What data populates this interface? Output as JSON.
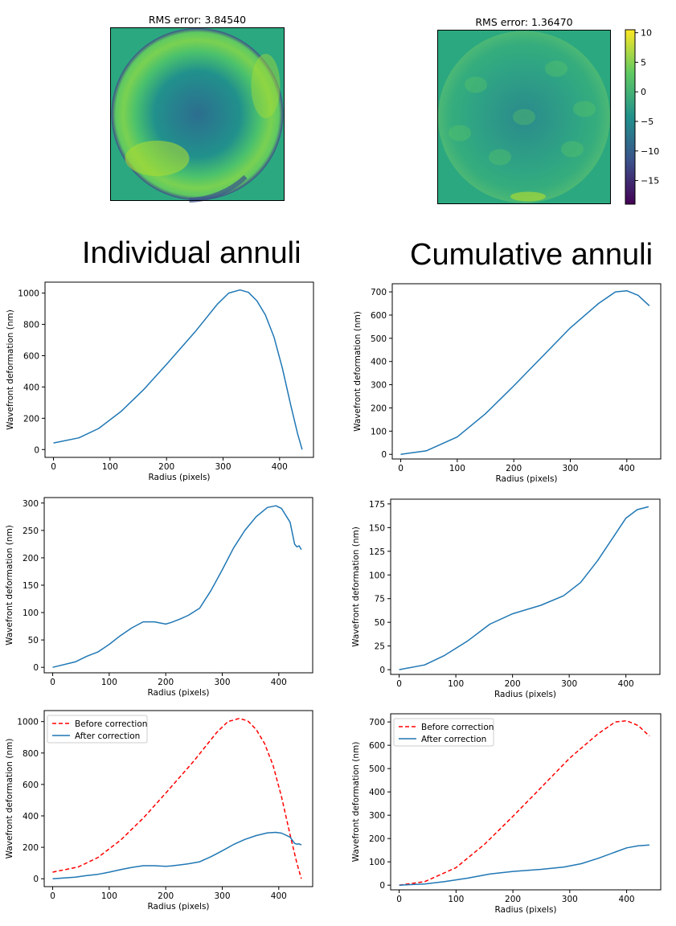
{
  "headings": {
    "left": "Individual annuli",
    "right": "Cumulative annuli"
  },
  "colors": {
    "line": "#1f77b4",
    "before": "#ff0000",
    "axis": "#000000"
  },
  "chart_data": [
    {
      "id": "map-left",
      "type": "heatmap",
      "title": "RMS error: 3.84540",
      "description_values": {
        "pattern": "radial",
        "center_level": -8,
        "ring_level": 5,
        "edge_level": -10
      },
      "colormap": "viridis"
    },
    {
      "id": "map-right",
      "type": "heatmap",
      "title": "RMS error: 1.36470",
      "colormap": "viridis",
      "colorbar": {
        "ticks": [
          10,
          5,
          0,
          -5,
          -10,
          -15
        ],
        "range": [
          -19,
          10.5
        ]
      }
    },
    {
      "id": "ind-1",
      "type": "line",
      "xlabel": "Radius (pixels)",
      "ylabel": "Wavefront deformation (nm)",
      "xlim": [
        -15,
        460
      ],
      "ylim": [
        -50,
        1070
      ],
      "xticks": [
        0,
        100,
        200,
        300,
        400
      ],
      "yticks": [
        0,
        200,
        400,
        600,
        800,
        1000
      ],
      "series": [
        {
          "x": [
            0,
            45,
            80,
            120,
            160,
            200,
            250,
            290,
            310,
            330,
            345,
            360,
            375,
            390,
            405,
            420,
            432,
            440
          ],
          "y": [
            42,
            75,
            135,
            245,
            385,
            545,
            750,
            930,
            1000,
            1020,
            1005,
            950,
            860,
            720,
            520,
            280,
            100,
            0
          ]
        }
      ]
    },
    {
      "id": "cum-1",
      "type": "line",
      "xlabel": "Radius (pixels)",
      "ylabel": "Wavefront deformation (nm)",
      "xlim": [
        -15,
        460
      ],
      "ylim": [
        -20,
        735
      ],
      "xticks": [
        0,
        100,
        200,
        300,
        400
      ],
      "yticks": [
        0,
        100,
        200,
        300,
        400,
        500,
        600,
        700
      ],
      "series": [
        {
          "x": [
            0,
            45,
            100,
            150,
            200,
            250,
            300,
            350,
            380,
            400,
            420,
            440
          ],
          "y": [
            0,
            15,
            75,
            175,
            295,
            420,
            545,
            650,
            700,
            705,
            685,
            640
          ]
        }
      ]
    },
    {
      "id": "ind-2",
      "type": "line",
      "xlabel": "Radius (pixels)",
      "ylabel": "Wavefront deformation (nm)",
      "xlim": [
        -15,
        460
      ],
      "ylim": [
        -10,
        310
      ],
      "xticks": [
        0,
        100,
        200,
        300,
        400
      ],
      "yticks": [
        0,
        50,
        100,
        150,
        200,
        250,
        300
      ],
      "series": [
        {
          "x": [
            0,
            40,
            60,
            80,
            100,
            120,
            140,
            160,
            180,
            200,
            210,
            225,
            240,
            260,
            280,
            300,
            320,
            340,
            360,
            380,
            395,
            405,
            420,
            428,
            432,
            436,
            440
          ],
          "y": [
            0,
            10,
            20,
            28,
            42,
            58,
            72,
            83,
            83,
            79,
            82,
            88,
            95,
            108,
            140,
            178,
            218,
            250,
            275,
            292,
            295,
            290,
            265,
            225,
            220,
            222,
            215
          ]
        }
      ]
    },
    {
      "id": "cum-2",
      "type": "line",
      "xlabel": "Radius (pixels)",
      "ylabel": "Wavefront deformation (nm)",
      "xlim": [
        -15,
        460
      ],
      "ylim": [
        -5,
        180
      ],
      "xticks": [
        0,
        100,
        200,
        300,
        400
      ],
      "yticks": [
        0,
        25,
        50,
        75,
        100,
        125,
        150,
        175
      ],
      "series": [
        {
          "x": [
            0,
            45,
            80,
            120,
            160,
            200,
            250,
            290,
            320,
            350,
            380,
            400,
            420,
            440
          ],
          "y": [
            0,
            5,
            15,
            30,
            48,
            59,
            68,
            78,
            92,
            115,
            142,
            160,
            169,
            172
          ]
        }
      ]
    },
    {
      "id": "ind-3",
      "type": "line",
      "xlabel": "Radius (pixels)",
      "ylabel": "Wavefront deformation (nm)",
      "xlim": [
        -15,
        460
      ],
      "ylim": [
        -50,
        1070
      ],
      "xticks": [
        0,
        100,
        200,
        300,
        400
      ],
      "yticks": [
        0,
        200,
        400,
        600,
        800,
        1000
      ],
      "legend": "upper-left",
      "series": [
        {
          "name": "Before correction",
          "style": "dashed",
          "color": "#ff0000",
          "x": [
            0,
            45,
            80,
            120,
            160,
            200,
            250,
            290,
            310,
            330,
            345,
            360,
            375,
            390,
            405,
            420,
            432,
            440
          ],
          "y": [
            42,
            75,
            135,
            245,
            385,
            545,
            750,
            930,
            1000,
            1020,
            1005,
            950,
            860,
            720,
            520,
            280,
            100,
            0
          ]
        },
        {
          "name": "After correction",
          "style": "solid",
          "color": "#1f77b4",
          "x": [
            0,
            40,
            60,
            80,
            100,
            120,
            140,
            160,
            180,
            200,
            210,
            225,
            240,
            260,
            280,
            300,
            320,
            340,
            360,
            380,
            395,
            405,
            420,
            428,
            432,
            436,
            440
          ],
          "y": [
            0,
            10,
            20,
            28,
            42,
            58,
            72,
            83,
            83,
            79,
            82,
            88,
            95,
            108,
            140,
            178,
            218,
            250,
            275,
            292,
            295,
            290,
            265,
            225,
            220,
            222,
            215
          ]
        }
      ]
    },
    {
      "id": "cum-3",
      "type": "line",
      "xlabel": "Radius (pixels)",
      "ylabel": "Wavefront deformation (nm)",
      "xlim": [
        -15,
        460
      ],
      "ylim": [
        -20,
        735
      ],
      "xticks": [
        0,
        100,
        200,
        300,
        400
      ],
      "yticks": [
        0,
        100,
        200,
        300,
        400,
        500,
        600,
        700
      ],
      "legend": "upper-left",
      "series": [
        {
          "name": "Before correction",
          "style": "dashed",
          "color": "#ff0000",
          "x": [
            0,
            45,
            100,
            150,
            200,
            250,
            300,
            350,
            380,
            400,
            420,
            440
          ],
          "y": [
            0,
            15,
            75,
            175,
            295,
            420,
            545,
            650,
            700,
            705,
            685,
            640
          ]
        },
        {
          "name": "After correction",
          "style": "solid",
          "color": "#1f77b4",
          "x": [
            0,
            45,
            80,
            120,
            160,
            200,
            250,
            290,
            320,
            350,
            380,
            400,
            420,
            440
          ],
          "y": [
            0,
            5,
            15,
            30,
            48,
            59,
            68,
            78,
            92,
            115,
            142,
            160,
            169,
            172
          ]
        }
      ]
    }
  ]
}
